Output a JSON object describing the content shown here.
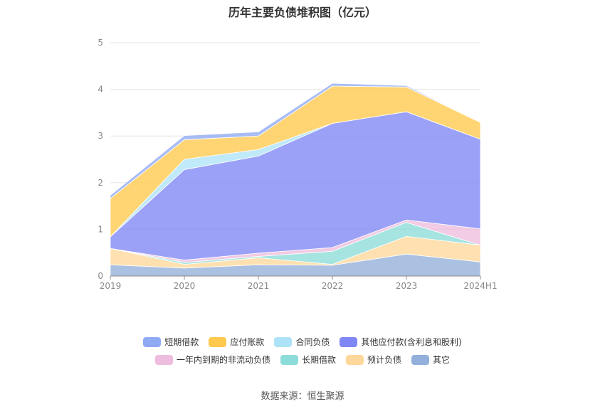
{
  "source_label": "数据来源：恒生聚源",
  "chart_data": {
    "type": "area",
    "stacked": true,
    "title": "历年主要负债堆积图（亿元）",
    "xlabel": "",
    "ylabel": "",
    "x": [
      "2019",
      "2020",
      "2021",
      "2022",
      "2023",
      "2024H1"
    ],
    "ylim": [
      0,
      5
    ],
    "yticks": [
      0,
      1,
      2,
      3,
      4,
      5
    ],
    "grid": true,
    "legend_position": "bottom",
    "series": [
      {
        "name": "其它",
        "color": "#93b0da",
        "values": [
          0.24,
          0.17,
          0.24,
          0.23,
          0.47,
          0.3
        ]
      },
      {
        "name": "预计负债",
        "color": "#ffd79a",
        "values": [
          0.35,
          0.08,
          0.15,
          0.02,
          0.38,
          0.36
        ]
      },
      {
        "name": "长期借款",
        "color": "#8cdcd9",
        "values": [
          0.0,
          0.04,
          0.03,
          0.28,
          0.3,
          0.0
        ]
      },
      {
        "name": "一年内到期的非流动负债",
        "color": "#eebcdd",
        "values": [
          0.0,
          0.05,
          0.07,
          0.08,
          0.05,
          0.35
        ]
      },
      {
        "name": "其他应付款(含利息和股利)",
        "color": "#7f87f5",
        "values": [
          0.25,
          1.94,
          2.08,
          2.66,
          2.32,
          1.92
        ]
      },
      {
        "name": "合同负债",
        "color": "#aee3f7",
        "values": [
          0.0,
          0.22,
          0.14,
          0.0,
          0.0,
          0.0
        ]
      },
      {
        "name": "应付账款",
        "color": "#ffc94d",
        "values": [
          0.82,
          0.42,
          0.29,
          0.8,
          0.53,
          0.36
        ]
      },
      {
        "name": "短期借款",
        "color": "#8fa9f4",
        "values": [
          0.07,
          0.09,
          0.09,
          0.06,
          0.03,
          0.0
        ]
      }
    ],
    "legend_rows": [
      [
        "短期借款",
        "应付账款",
        "合同负债",
        "其他应付款(含利息和股利)"
      ],
      [
        "一年内到期的非流动负债",
        "长期借款",
        "预计负债",
        "其它"
      ]
    ]
  }
}
